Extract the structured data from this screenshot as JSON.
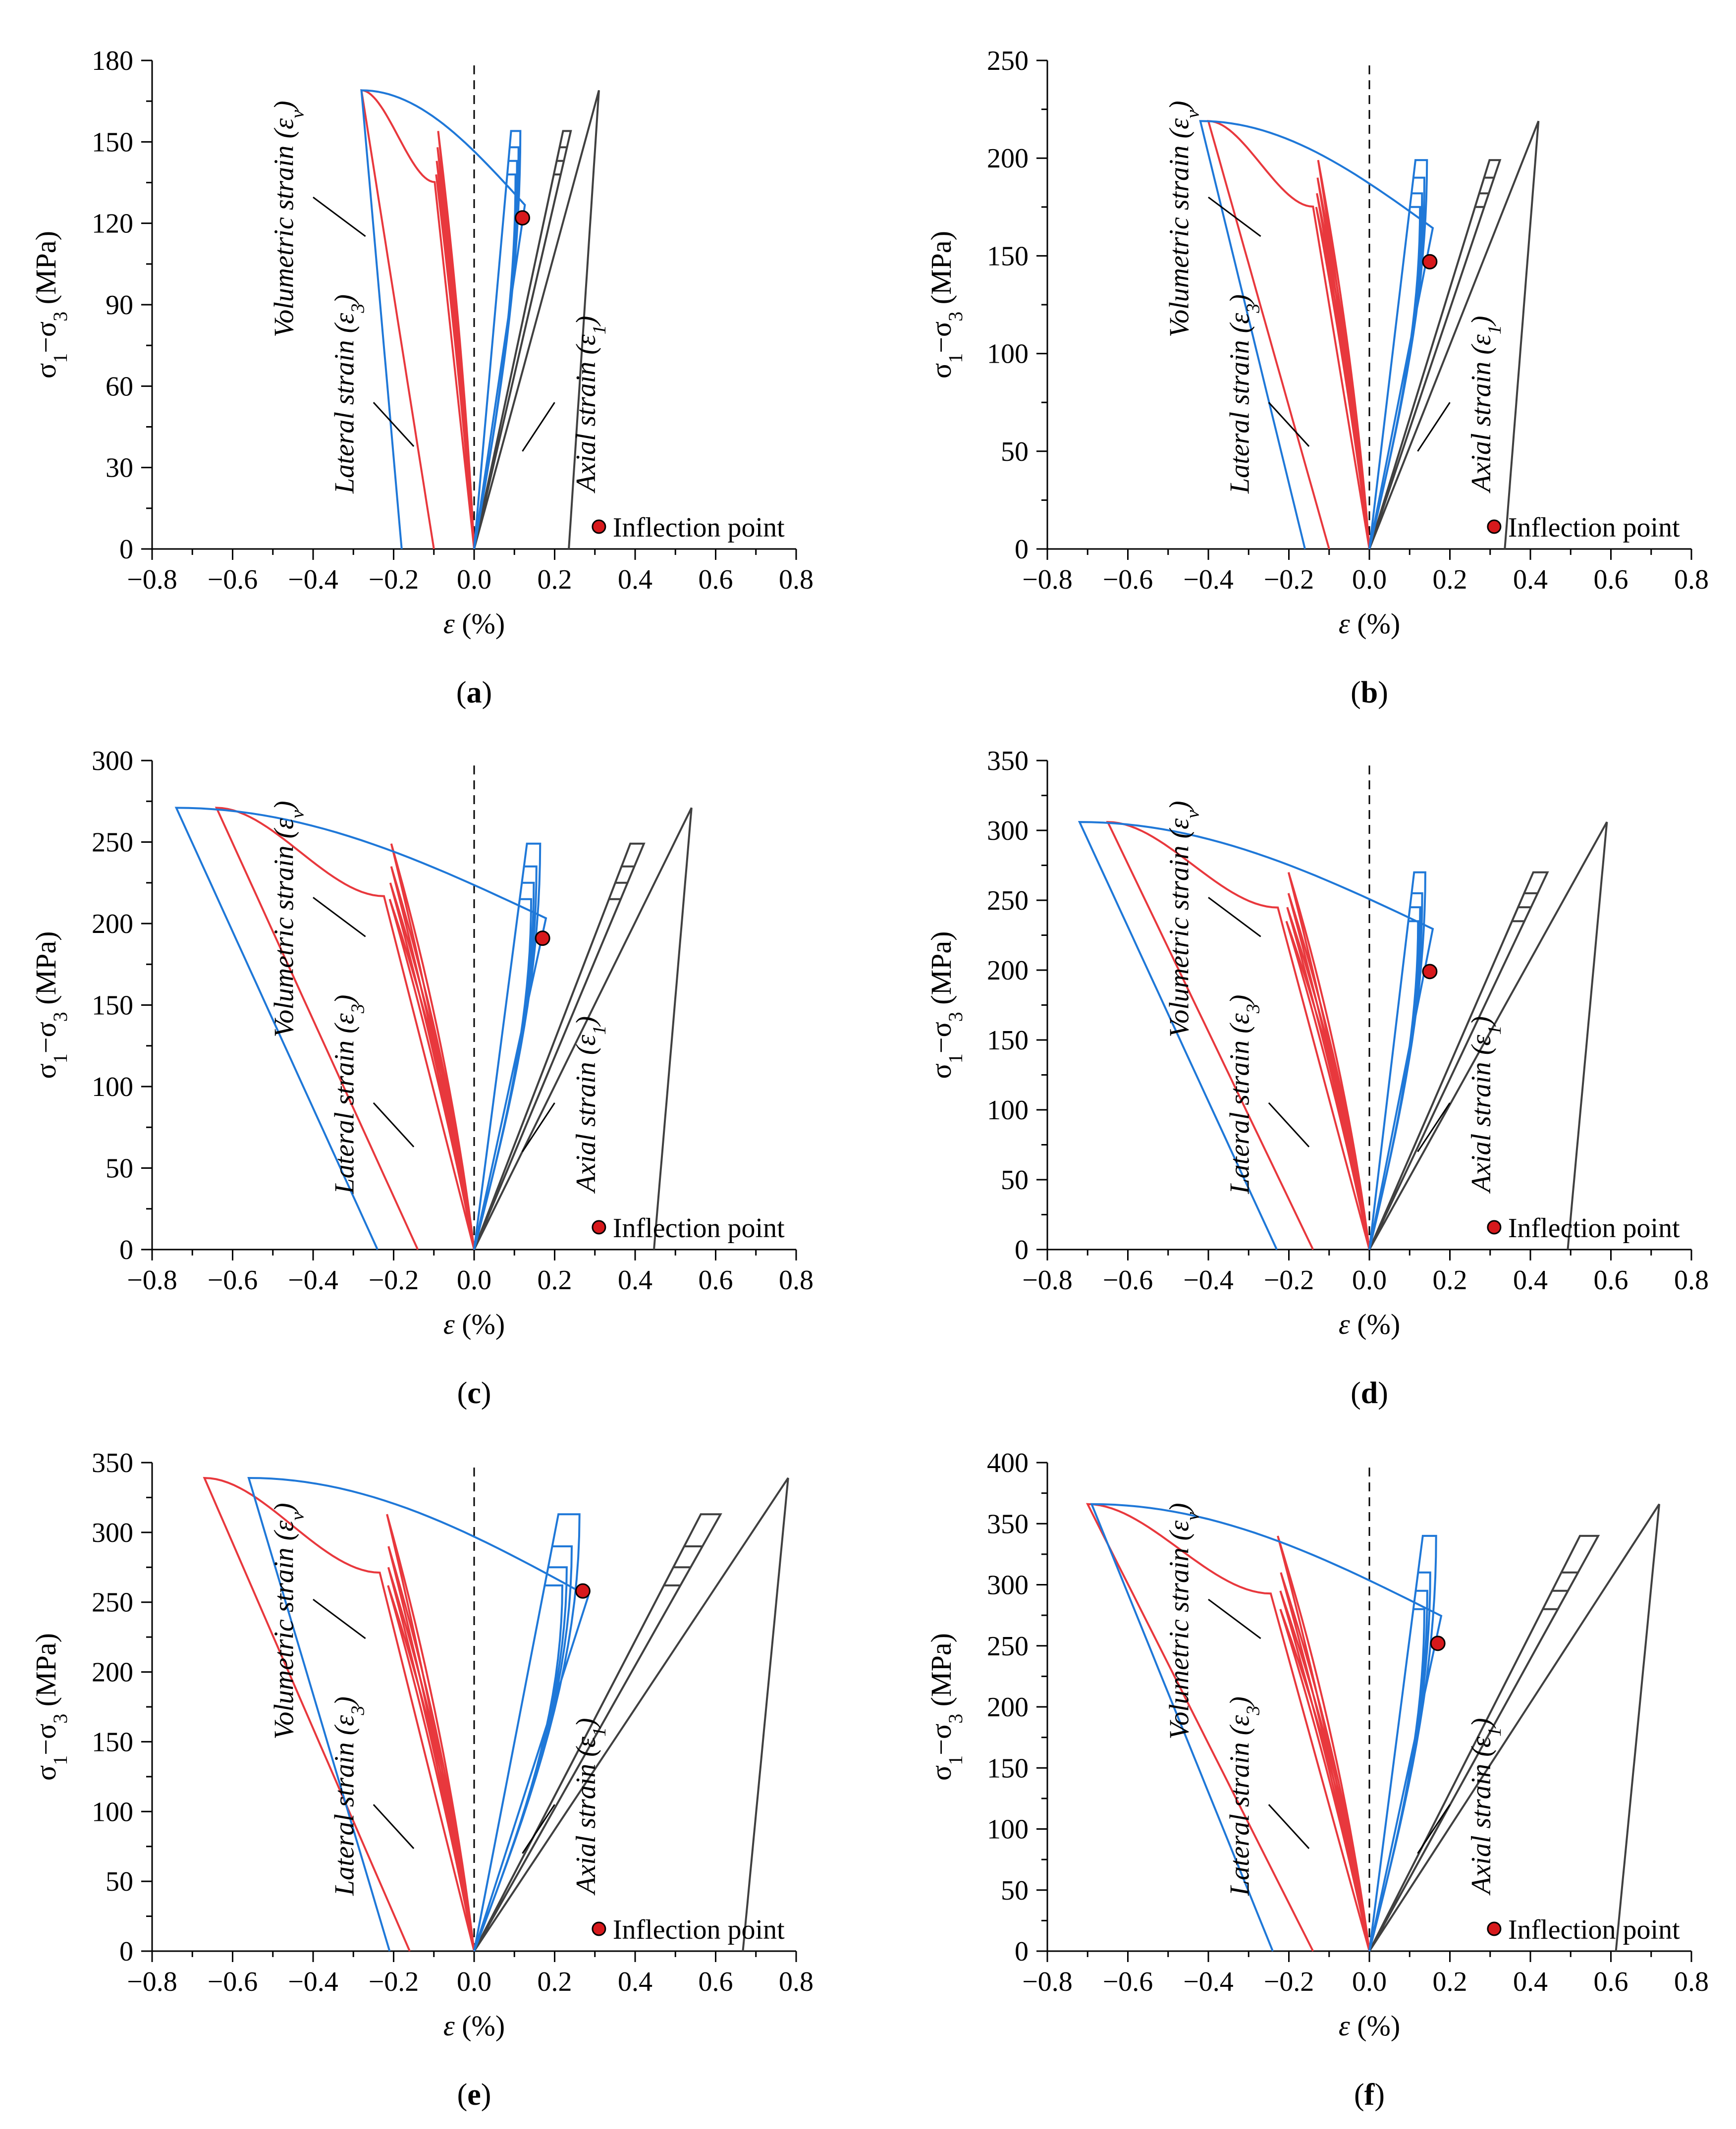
{
  "figure": {
    "x_axis_label": "ε (%)",
    "y_axis_label": "σ1−σ3 (MPa)",
    "legend": "Inflection point",
    "colors": {
      "lateral": "#e8383d",
      "volumetric": "#1f78d8",
      "axial": "#404040",
      "marker": "#d7191c",
      "dashed": "#000000"
    },
    "curve_labels": {
      "volumetric": "Volumetric strain (εv)",
      "lateral": "Lateral strain (ε3)",
      "axial": "Axial strain (ε1)"
    }
  },
  "chart_data": [
    {
      "type": "line",
      "panel": "(a)",
      "xlim": [
        -0.8,
        0.8
      ],
      "ylim": [
        0,
        180
      ],
      "x_ticks": [
        -0.8,
        -0.6,
        -0.4,
        -0.2,
        0.0,
        0.2,
        0.4,
        0.6,
        0.8
      ],
      "y_ticks": [
        0,
        30,
        60,
        90,
        120,
        150,
        180
      ],
      "peak_stress": 169,
      "inflection_point": {
        "x": 0.12,
        "y": 122
      },
      "lateral_min_strain": -0.28,
      "volumetric_min_strain": -0.28,
      "volumetric_end_strain": -0.18,
      "lateral_end_strain": -0.1,
      "axial_peak_strain": 0.31,
      "cycle_peaks": [
        154,
        148,
        143,
        138
      ]
    },
    {
      "type": "line",
      "panel": "(b)",
      "xlim": [
        -0.8,
        0.8
      ],
      "ylim": [
        0,
        250
      ],
      "x_ticks": [
        -0.8,
        -0.6,
        -0.4,
        -0.2,
        0.0,
        0.2,
        0.4,
        0.6,
        0.8
      ],
      "y_ticks": [
        0,
        50,
        100,
        150,
        200,
        250
      ],
      "peak_stress": 219,
      "inflection_point": {
        "x": 0.15,
        "y": 147
      },
      "lateral_min_strain": -0.4,
      "volumetric_min_strain": -0.42,
      "volumetric_end_strain": -0.16,
      "lateral_end_strain": -0.1,
      "axial_peak_strain": 0.42,
      "cycle_peaks": [
        199,
        190,
        182,
        175
      ]
    },
    {
      "type": "line",
      "panel": "(c)",
      "xlim": [
        -0.8,
        0.8
      ],
      "ylim": [
        0,
        300
      ],
      "x_ticks": [
        -0.8,
        -0.6,
        -0.4,
        -0.2,
        0.0,
        0.2,
        0.4,
        0.6,
        0.8
      ],
      "y_ticks": [
        0,
        50,
        100,
        150,
        200,
        250,
        300
      ],
      "peak_stress": 271,
      "inflection_point": {
        "x": 0.17,
        "y": 191
      },
      "lateral_min_strain": -0.64,
      "volumetric_min_strain": -0.74,
      "volumetric_end_strain": -0.24,
      "lateral_end_strain": -0.14,
      "axial_peak_strain": 0.54,
      "cycle_peaks": [
        249,
        235,
        225,
        215
      ]
    },
    {
      "type": "line",
      "panel": "(d)",
      "xlim": [
        -0.8,
        0.8
      ],
      "ylim": [
        0,
        350
      ],
      "x_ticks": [
        -0.8,
        -0.6,
        -0.4,
        -0.2,
        0.0,
        0.2,
        0.4,
        0.6,
        0.8
      ],
      "y_ticks": [
        0,
        50,
        100,
        150,
        200,
        250,
        300,
        350
      ],
      "peak_stress": 306,
      "inflection_point": {
        "x": 0.15,
        "y": 199
      },
      "lateral_min_strain": -0.65,
      "volumetric_min_strain": -0.72,
      "volumetric_end_strain": -0.23,
      "lateral_end_strain": -0.14,
      "axial_peak_strain": 0.59,
      "cycle_peaks": [
        270,
        255,
        245,
        235
      ]
    },
    {
      "type": "line",
      "panel": "(e)",
      "xlim": [
        -0.8,
        0.8
      ],
      "ylim": [
        0,
        350
      ],
      "x_ticks": [
        -0.8,
        -0.6,
        -0.4,
        -0.2,
        0.0,
        0.2,
        0.4,
        0.6,
        0.8
      ],
      "y_ticks": [
        0,
        50,
        100,
        150,
        200,
        250,
        300,
        350
      ],
      "peak_stress": 339,
      "inflection_point": {
        "x": 0.27,
        "y": 258
      },
      "lateral_min_strain": -0.67,
      "volumetric_min_strain": -0.56,
      "volumetric_end_strain": -0.21,
      "lateral_end_strain": -0.16,
      "axial_peak_strain": 0.78,
      "cycle_peaks": [
        313,
        290,
        275,
        262
      ]
    },
    {
      "type": "line",
      "panel": "(f)",
      "xlim": [
        -0.8,
        0.8
      ],
      "ylim": [
        0,
        400
      ],
      "x_ticks": [
        -0.8,
        -0.6,
        -0.4,
        -0.2,
        0.0,
        0.2,
        0.4,
        0.6,
        0.8
      ],
      "y_ticks": [
        0,
        50,
        100,
        150,
        200,
        250,
        300,
        350,
        400
      ],
      "peak_stress": 366,
      "inflection_point": {
        "x": 0.17,
        "y": 252
      },
      "lateral_min_strain": -0.7,
      "volumetric_min_strain": -0.69,
      "volumetric_end_strain": -0.24,
      "lateral_end_strain": -0.14,
      "axial_peak_strain": 0.72,
      "cycle_peaks": [
        340,
        310,
        295,
        280
      ]
    }
  ]
}
